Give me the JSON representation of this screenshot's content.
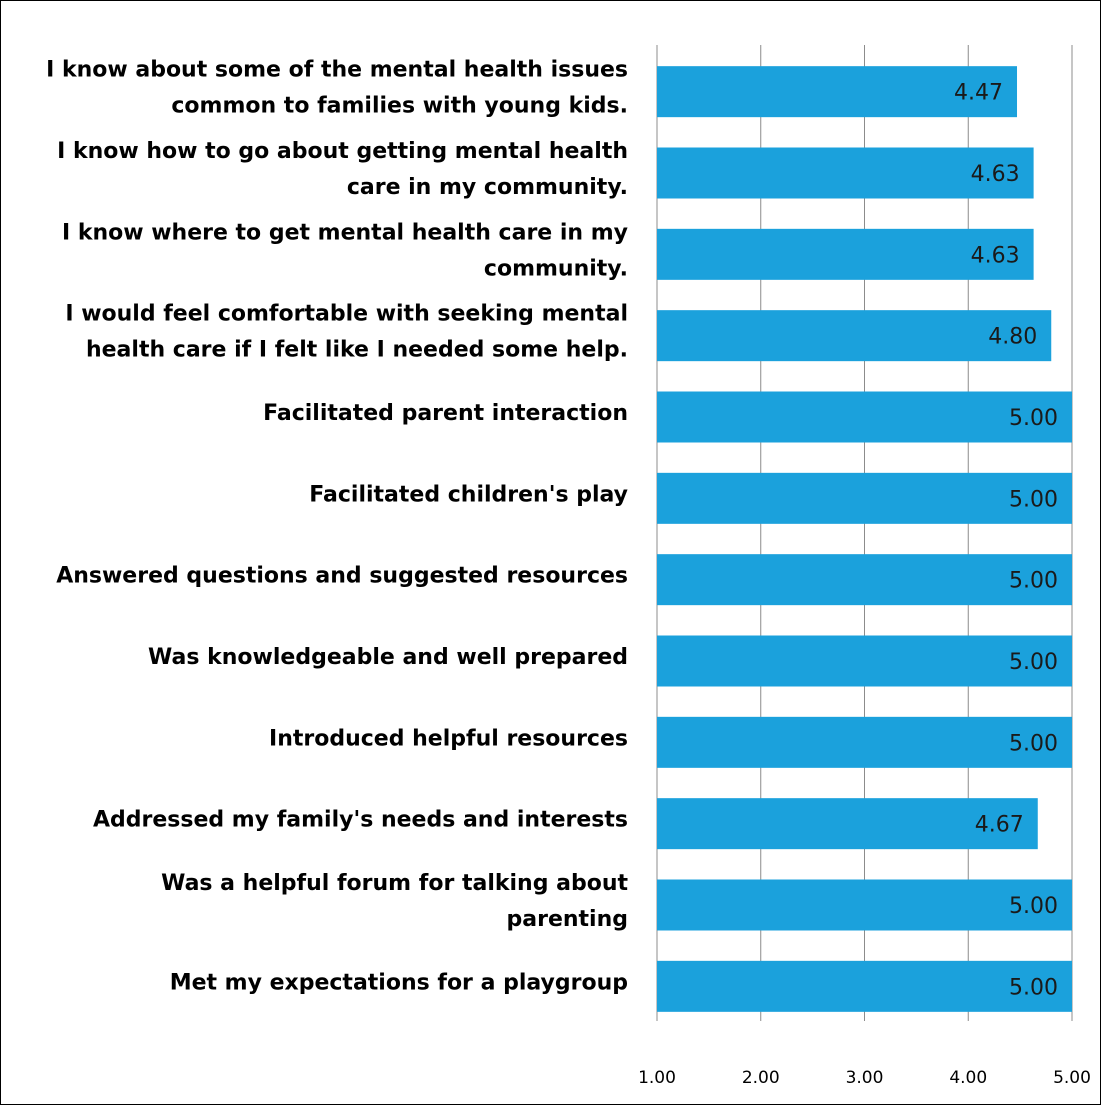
{
  "chart_data": {
    "type": "bar",
    "orientation": "horizontal",
    "title": "",
    "xlabel": "",
    "ylabel": "",
    "xlim": [
      1.0,
      5.0
    ],
    "x_ticks": [
      "1.00",
      "2.00",
      "3.00",
      "4.00",
      "5.00"
    ],
    "grid": true,
    "bar_color": "#1BA1DC",
    "categories": [
      [
        "I know about some of the mental health issues",
        "common to families with young kids."
      ],
      [
        "I know how to go about getting mental health",
        "care in my community."
      ],
      [
        "I know where to get mental health care in my",
        "community."
      ],
      [
        "I would feel comfortable with seeking mental",
        "health care if I felt like I needed some help."
      ],
      [
        "Facilitated parent interaction"
      ],
      [
        "Facilitated children's play"
      ],
      [
        "Answered questions and suggested resources"
      ],
      [
        "Was knowledgeable and well prepared"
      ],
      [
        "Introduced helpful resources"
      ],
      [
        "Addressed my family's needs and interests"
      ],
      [
        "Was a helpful forum for talking about",
        "parenting"
      ],
      [
        "Met my expectations for a playgroup"
      ]
    ],
    "values": [
      4.47,
      4.63,
      4.63,
      4.8,
      5.0,
      5.0,
      5.0,
      5.0,
      5.0,
      4.67,
      5.0,
      5.0
    ],
    "value_labels": [
      "4.47",
      "4.63",
      "4.63",
      "4.80",
      "5.00",
      "5.00",
      "5.00",
      "5.00",
      "5.00",
      "4.67",
      "5.00",
      "5.00"
    ]
  }
}
